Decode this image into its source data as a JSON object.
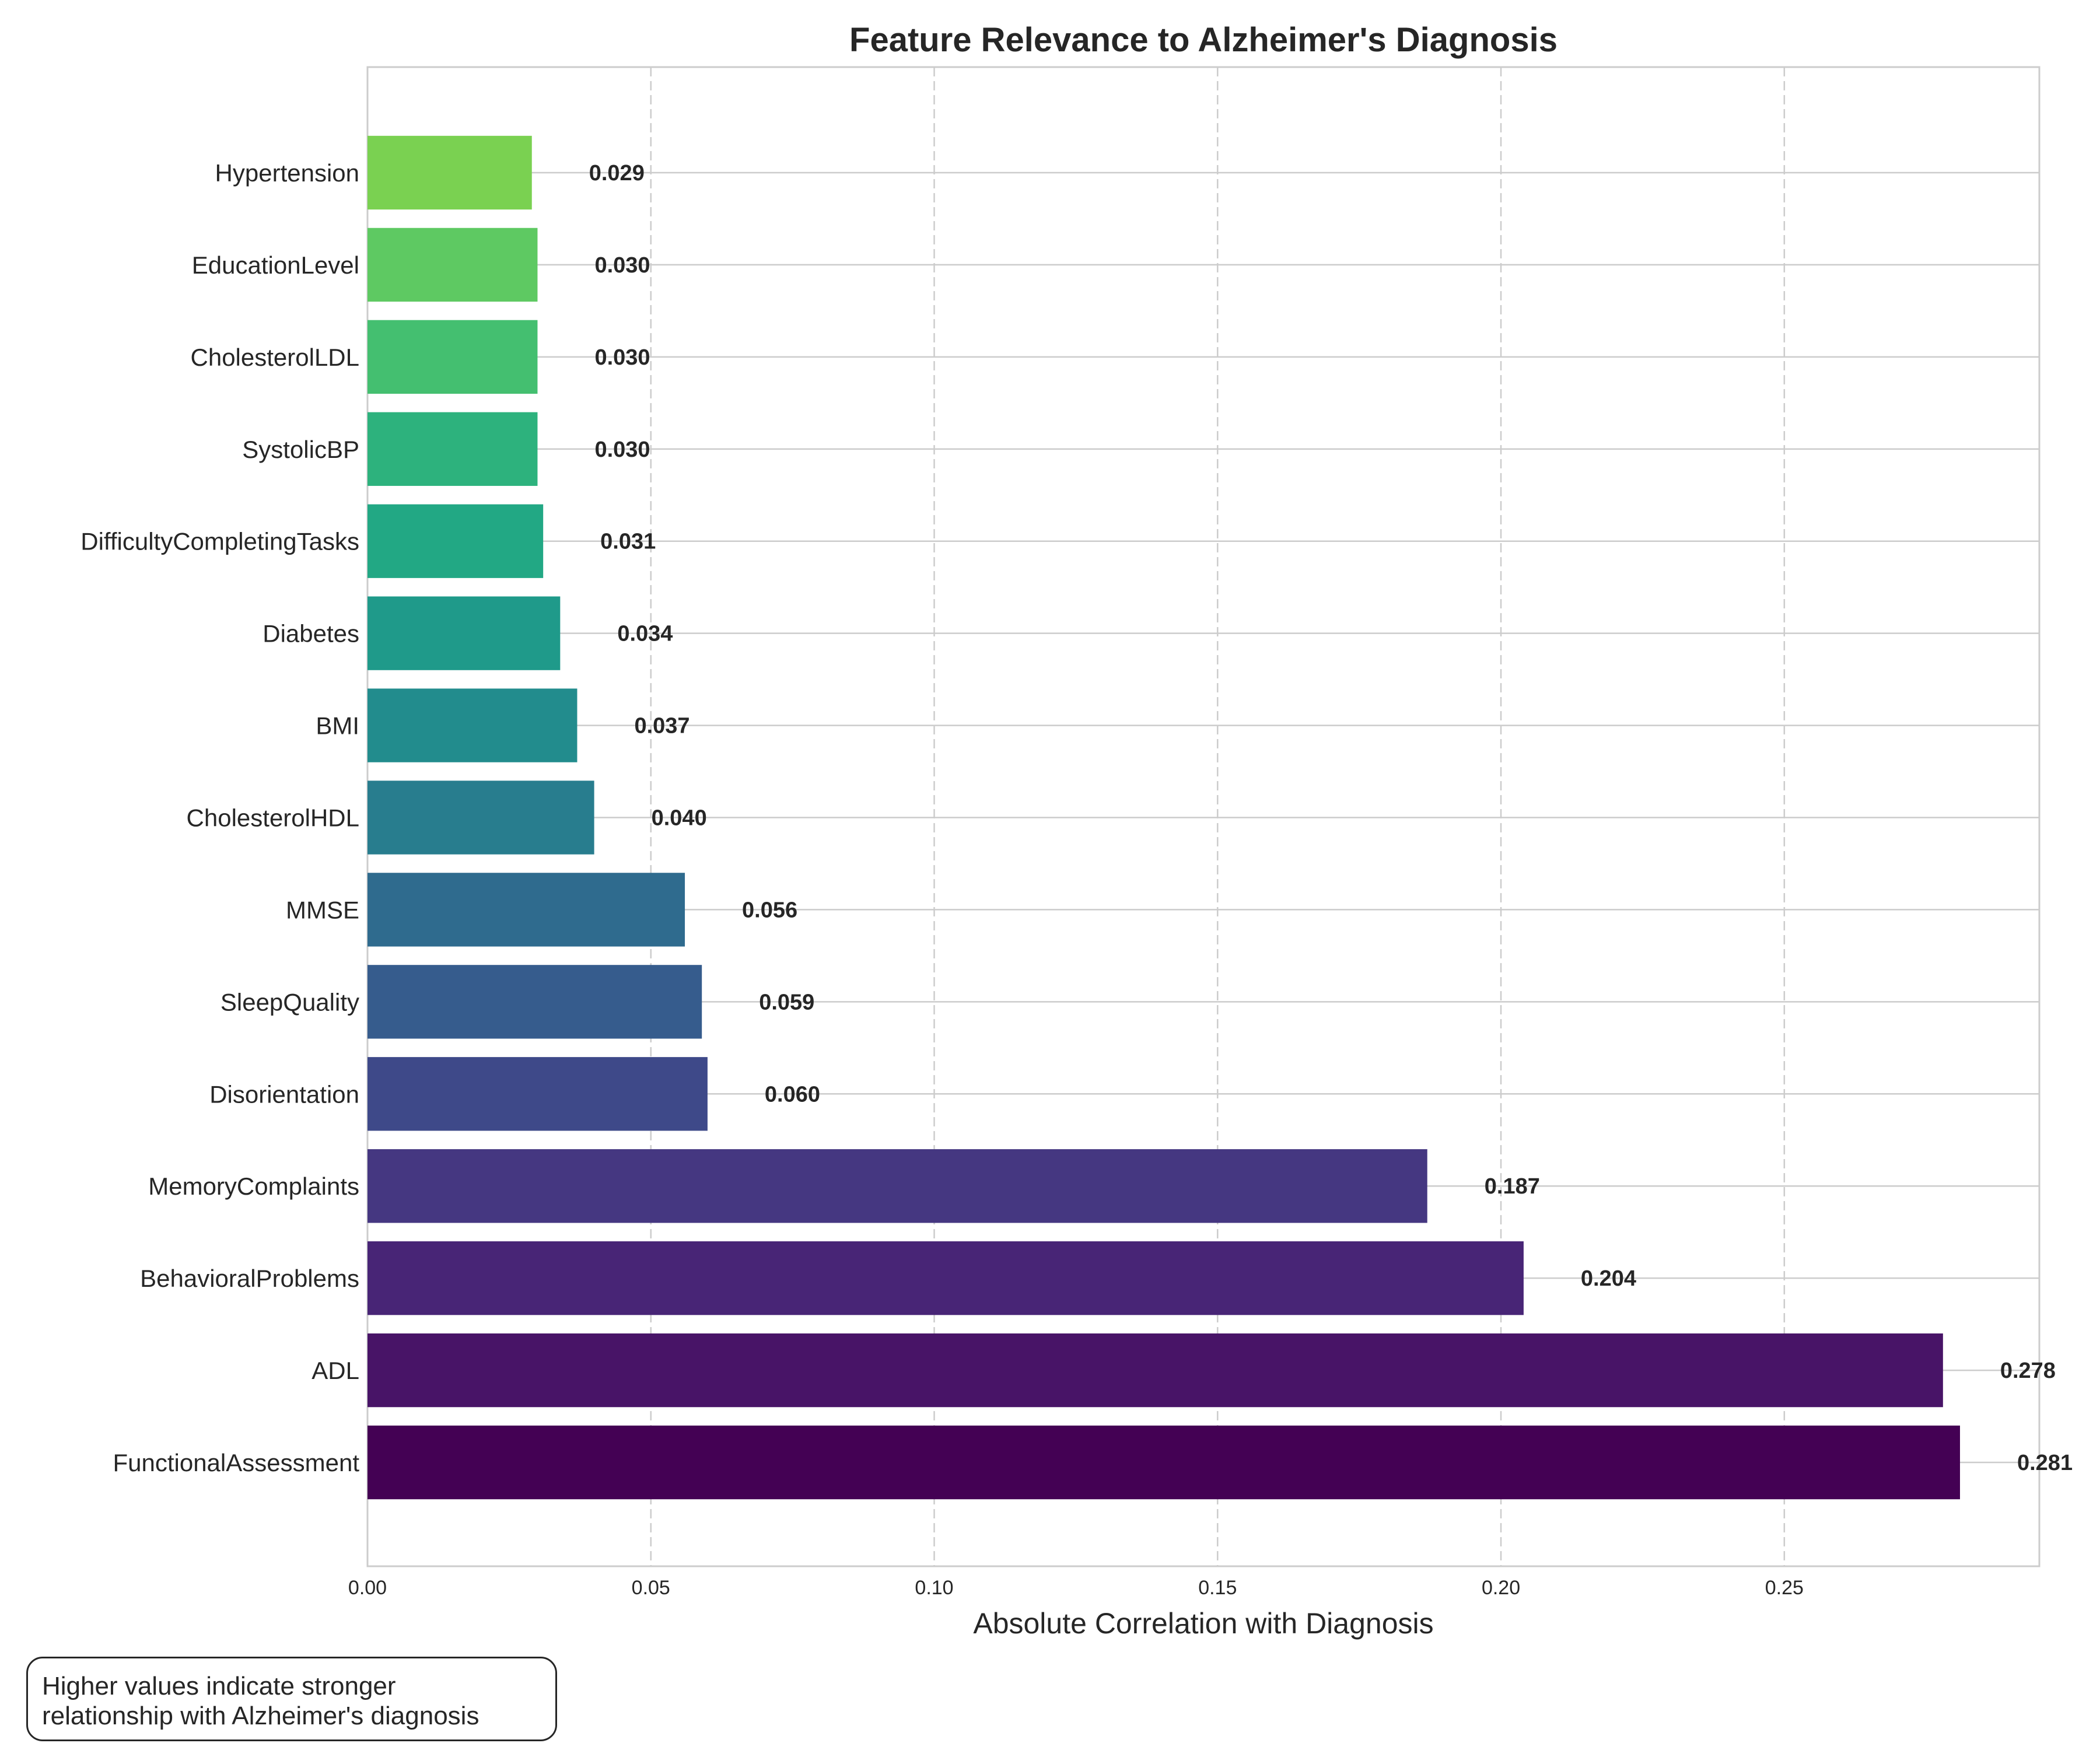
{
  "chart_data": {
    "type": "bar",
    "orientation": "horizontal",
    "title": "Feature Relevance to Alzheimer's Diagnosis",
    "xlabel": "Absolute Correlation with Diagnosis",
    "ylabel": "",
    "xlim": [
      0,
      0.295
    ],
    "xticks": [
      0.0,
      0.05,
      0.1,
      0.15,
      0.2,
      0.25
    ],
    "xtick_labels": [
      "0.00",
      "0.05",
      "0.10",
      "0.15",
      "0.20",
      "0.25"
    ],
    "grid": true,
    "categories": [
      "FunctionalAssessment",
      "ADL",
      "BehavioralProblems",
      "MemoryComplaints",
      "Disorientation",
      "SleepQuality",
      "MMSE",
      "CholesterolHDL",
      "BMI",
      "Diabetes",
      "DifficultyCompletingTasks",
      "SystolicBP",
      "CholesterolLDL",
      "EducationLevel",
      "Hypertension"
    ],
    "values": [
      0.281,
      0.278,
      0.204,
      0.187,
      0.06,
      0.059,
      0.056,
      0.04,
      0.037,
      0.034,
      0.031,
      0.03,
      0.03,
      0.03,
      0.029
    ],
    "value_labels": [
      "0.281",
      "0.278",
      "0.204",
      "0.187",
      "0.060",
      "0.059",
      "0.056",
      "0.040",
      "0.037",
      "0.034",
      "0.031",
      "0.030",
      "0.030",
      "0.030",
      "0.029"
    ],
    "colors": [
      "#440154",
      "#481467",
      "#482576",
      "#453781",
      "#3e4989",
      "#365c8d",
      "#2f6b8e",
      "#287d8e",
      "#228c8d",
      "#1f9a8a",
      "#22a884",
      "#2db27d",
      "#44bf70",
      "#5ec962",
      "#7ad151"
    ]
  },
  "annotation": {
    "line1": "Higher values indicate stronger",
    "line2": "relationship with Alzheimer's diagnosis"
  }
}
